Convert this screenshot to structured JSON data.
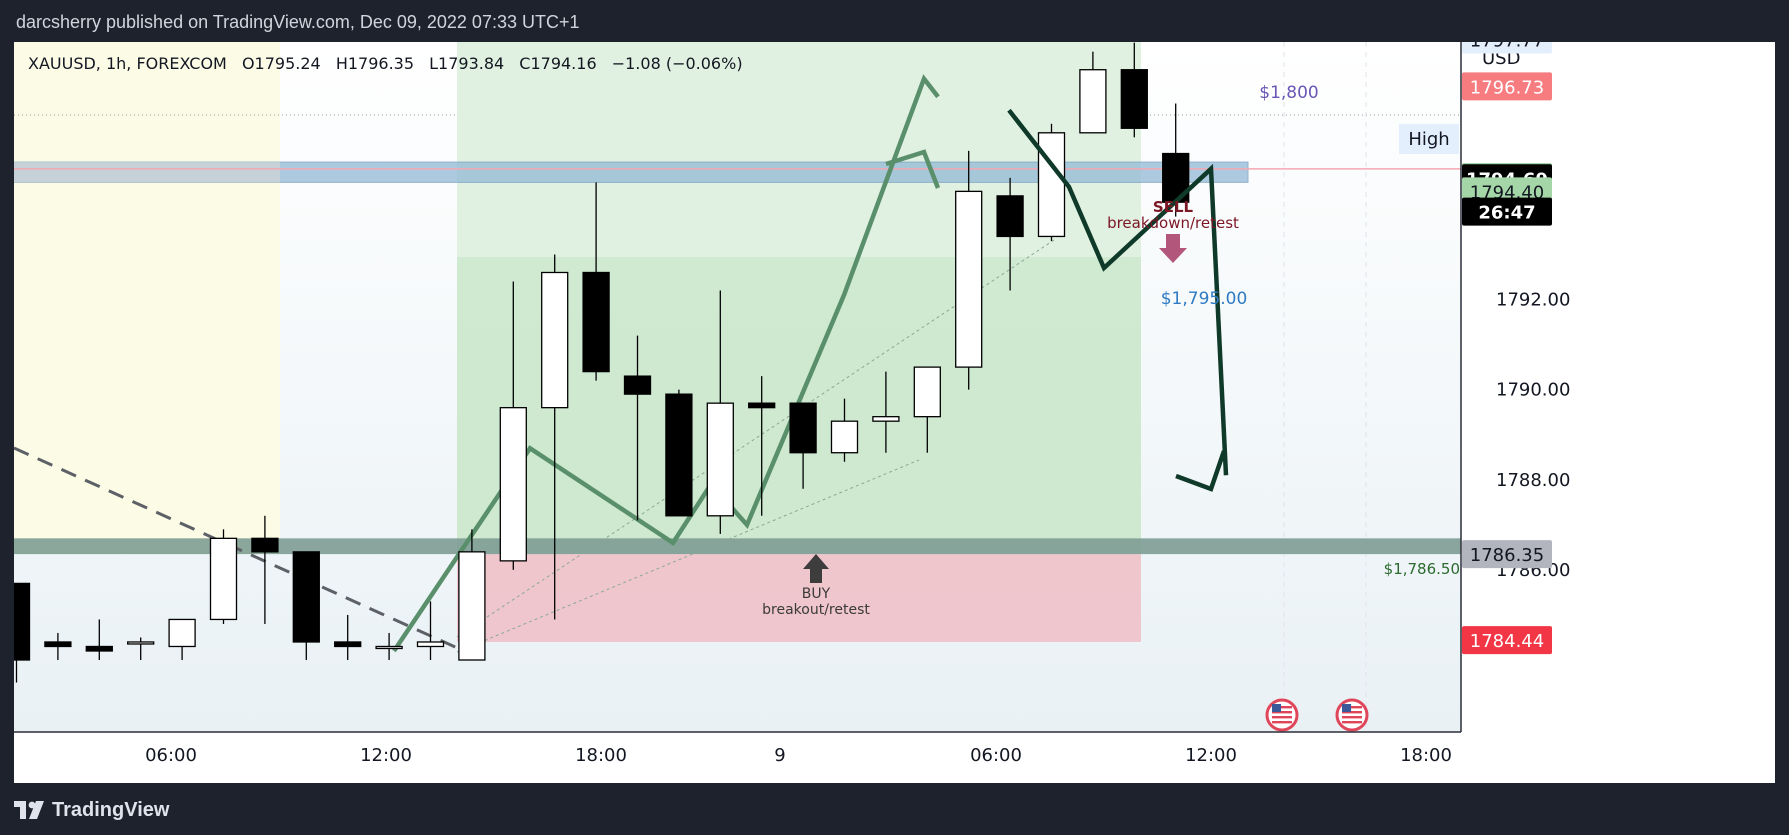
{
  "header": {
    "published": "darcsherry published on TradingView.com, Dec 09, 2022 07:33 UTC+1"
  },
  "footer": {
    "brand": "TradingView"
  },
  "legend": {
    "symbol": "XAUUSD, 1h, FOREXCOM",
    "open": "O1795.24",
    "high": "H1796.35",
    "low": "L1793.84",
    "close": "C1794.16",
    "change": "−1.08 (−0.06%)"
  },
  "colors": {
    "background": "#ffffff",
    "up_candle": "#ffffff",
    "down_candle": "#000000",
    "long_profit": "#c8e6c9",
    "long_loss": "#efc3ca",
    "sell_label": "#7b1624",
    "level_blue": "#2e7bc4",
    "bearish_arrow": "#0f3a2a",
    "bullish_path": "#5a8f6c"
  },
  "chart_data": {
    "type": "candlestick",
    "symbol": "XAUUSD",
    "interval": "1h",
    "currency": "USD",
    "ylim": [
      1784.0,
      1799.2
    ],
    "y_ticks": [
      "1792.00",
      "1790.00",
      "1788.00",
      "1786.00"
    ],
    "x_ticks": [
      "06:00",
      "12:00",
      "18:00",
      "9",
      "06:00",
      "12:00",
      "18:00"
    ],
    "candles": [
      {
        "o": 1785.7,
        "h": 1785.7,
        "l": 1783.5,
        "c": 1784.0
      },
      {
        "o": 1784.4,
        "h": 1784.6,
        "l": 1784.0,
        "c": 1784.3
      },
      {
        "o": 1784.3,
        "h": 1784.9,
        "l": 1784.0,
        "c": 1784.2
      },
      {
        "o": 1784.4,
        "h": 1784.5,
        "l": 1784.0,
        "c": 1784.4
      },
      {
        "o": 1784.3,
        "h": 1784.8,
        "l": 1784.0,
        "c": 1784.9
      },
      {
        "o": 1784.9,
        "h": 1786.9,
        "l": 1784.8,
        "c": 1786.7
      },
      {
        "o": 1786.7,
        "h": 1787.2,
        "l": 1784.8,
        "c": 1786.4
      },
      {
        "o": 1786.4,
        "h": 1786.4,
        "l": 1784.0,
        "c": 1784.4
      },
      {
        "o": 1784.4,
        "h": 1785.0,
        "l": 1784.0,
        "c": 1784.3
      },
      {
        "o": 1784.3,
        "h": 1784.6,
        "l": 1784.0,
        "c": 1784.3
      },
      {
        "o": 1784.3,
        "h": 1785.3,
        "l": 1784.0,
        "c": 1784.4
      },
      {
        "o": 1784.0,
        "h": 1786.9,
        "l": 1784.0,
        "c": 1786.4
      },
      {
        "o": 1786.2,
        "h": 1792.4,
        "l": 1786.0,
        "c": 1789.6
      },
      {
        "o": 1789.6,
        "h": 1793.0,
        "l": 1784.9,
        "c": 1792.6
      },
      {
        "o": 1792.6,
        "h": 1794.6,
        "l": 1790.2,
        "c": 1790.4
      },
      {
        "o": 1790.3,
        "h": 1791.2,
        "l": 1787.1,
        "c": 1789.9
      },
      {
        "o": 1789.9,
        "h": 1790.0,
        "l": 1787.2,
        "c": 1787.2
      },
      {
        "o": 1787.2,
        "h": 1792.2,
        "l": 1786.8,
        "c": 1789.7
      },
      {
        "o": 1789.7,
        "h": 1790.3,
        "l": 1787.2,
        "c": 1789.6
      },
      {
        "o": 1789.7,
        "h": 1789.7,
        "l": 1787.8,
        "c": 1788.6
      },
      {
        "o": 1788.6,
        "h": 1789.8,
        "l": 1788.4,
        "c": 1789.3
      },
      {
        "o": 1789.3,
        "h": 1790.4,
        "l": 1788.6,
        "c": 1789.4
      },
      {
        "o": 1789.4,
        "h": 1790.5,
        "l": 1788.6,
        "c": 1790.5
      },
      {
        "o": 1790.5,
        "h": 1795.3,
        "l": 1790.0,
        "c": 1794.4
      },
      {
        "o": 1794.3,
        "h": 1794.7,
        "l": 1792.2,
        "c": 1793.4
      },
      {
        "o": 1793.4,
        "h": 1795.9,
        "l": 1793.3,
        "c": 1795.7
      },
      {
        "o": 1795.7,
        "h": 1797.5,
        "l": 1795.7,
        "c": 1797.1
      },
      {
        "o": 1797.1,
        "h": 1797.7,
        "l": 1795.6,
        "c": 1795.8
      },
      {
        "o": 1795.24,
        "h": 1796.35,
        "l": 1793.84,
        "c": 1794.16
      }
    ],
    "price_labels": [
      {
        "text": "1797.77",
        "price": 1797.77,
        "bg": "#e3effd",
        "fg": "#131722"
      },
      {
        "text": "1796.73",
        "price": 1796.73,
        "bg": "#f77c80",
        "fg": "#ffffff"
      },
      {
        "text": "1794.72",
        "price": 1794.72,
        "bg": "#a5d6a7",
        "fg": "#131722"
      },
      {
        "text": "1794.69",
        "price": 1794.69,
        "bg": "#000000",
        "fg": "#ffffff"
      },
      {
        "text": "1794.40",
        "price": 1794.4,
        "bg": "#a5d6a7",
        "fg": "#131722"
      },
      {
        "text": "26:47",
        "price": 1793.95,
        "bg": "#000000",
        "fg": "#ffffff"
      },
      {
        "text": "1786.35",
        "price": 1786.35,
        "bg": "#b2b5be",
        "fg": "#131722"
      },
      {
        "text": "1784.44",
        "price": 1784.44,
        "bg": "#f23645",
        "fg": "#ffffff"
      }
    ],
    "high_label": "High",
    "annotations": {
      "level_1800": "$1,800",
      "level_1795": "$1,795.00",
      "level_1786_5": "$1,786.50",
      "sell_title": "SELL",
      "sell_sub": "breakdown/retest",
      "buy_title": "BUY",
      "buy_sub": "breakout/retest"
    },
    "levels": {
      "resistance_zone": [
        1794.6,
        1795.05
      ],
      "support_zone": [
        1786.35,
        1786.7
      ],
      "long_entry": 1786.35,
      "long_target": 1799.2,
      "long_stop": 1784.4
    },
    "bullish_path_prices": [
      1784.2,
      1788.7,
      1786.6,
      1787.9,
      1787.0,
      1792.1,
      1796.9,
      1796.5
    ],
    "bearish_path_prices": [
      1796.2,
      1794.5,
      1792.7,
      1794.9,
      1788.1,
      1789.0
    ]
  }
}
